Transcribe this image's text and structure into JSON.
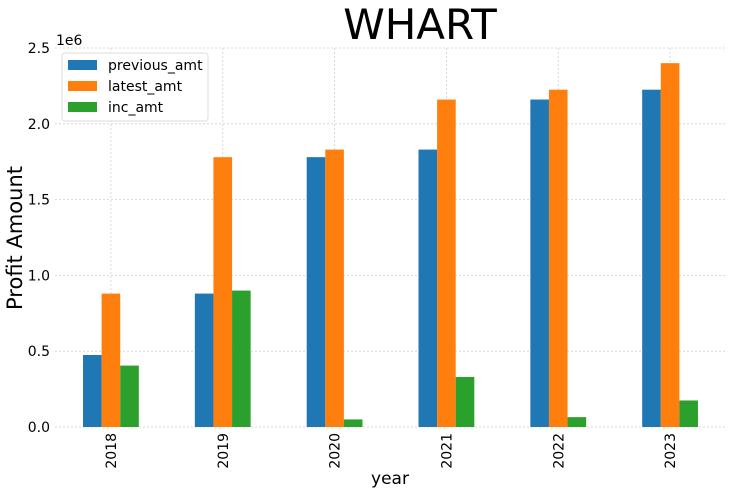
{
  "chart_data": {
    "type": "bar",
    "title": "WHART",
    "xlabel": "year",
    "ylabel": "Profit Amount",
    "y_offset_label": "1e6",
    "categories": [
      "2018",
      "2019",
      "2020",
      "2021",
      "2022",
      "2023"
    ],
    "series": [
      {
        "name": "previous_amt",
        "color": "#1f77b4",
        "values": [
          475000,
          880000,
          1780000,
          1830000,
          2160000,
          2225000
        ]
      },
      {
        "name": "latest_amt",
        "color": "#ff7f0e",
        "values": [
          880000,
          1780000,
          1830000,
          2160000,
          2225000,
          2400000
        ]
      },
      {
        "name": "inc_amt",
        "color": "#2ca02c",
        "values": [
          405000,
          900000,
          50000,
          330000,
          65000,
          175000
        ]
      }
    ],
    "ylim": [
      0,
      2500000
    ],
    "yticks": [
      0,
      500000,
      1000000,
      1500000,
      2000000,
      2500000
    ],
    "ytick_labels": [
      "0.0",
      "0.5",
      "1.0",
      "1.5",
      "2.0",
      "2.5"
    ],
    "grid": true,
    "legend_position": "top-left"
  }
}
